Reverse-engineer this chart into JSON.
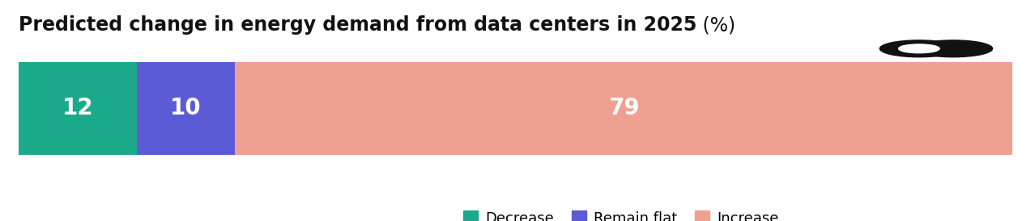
{
  "title_bold": "Predicted change in energy demand from data centers in 2025",
  "title_normal": " (%)",
  "segments": [
    {
      "label": "Decrease",
      "value": 12,
      "color": "#1aaa8a"
    },
    {
      "label": "Remain flat",
      "value": 10,
      "color": "#5b5bd6"
    },
    {
      "label": "Increase",
      "value": 79,
      "color": "#f0a090"
    }
  ],
  "bar_label_color": "white",
  "bar_label_fontsize": 20,
  "background_color": "#ffffff",
  "title_fontsize": 17,
  "legend_fontsize": 13,
  "icon_color": "#111111",
  "title_color": "#111111"
}
